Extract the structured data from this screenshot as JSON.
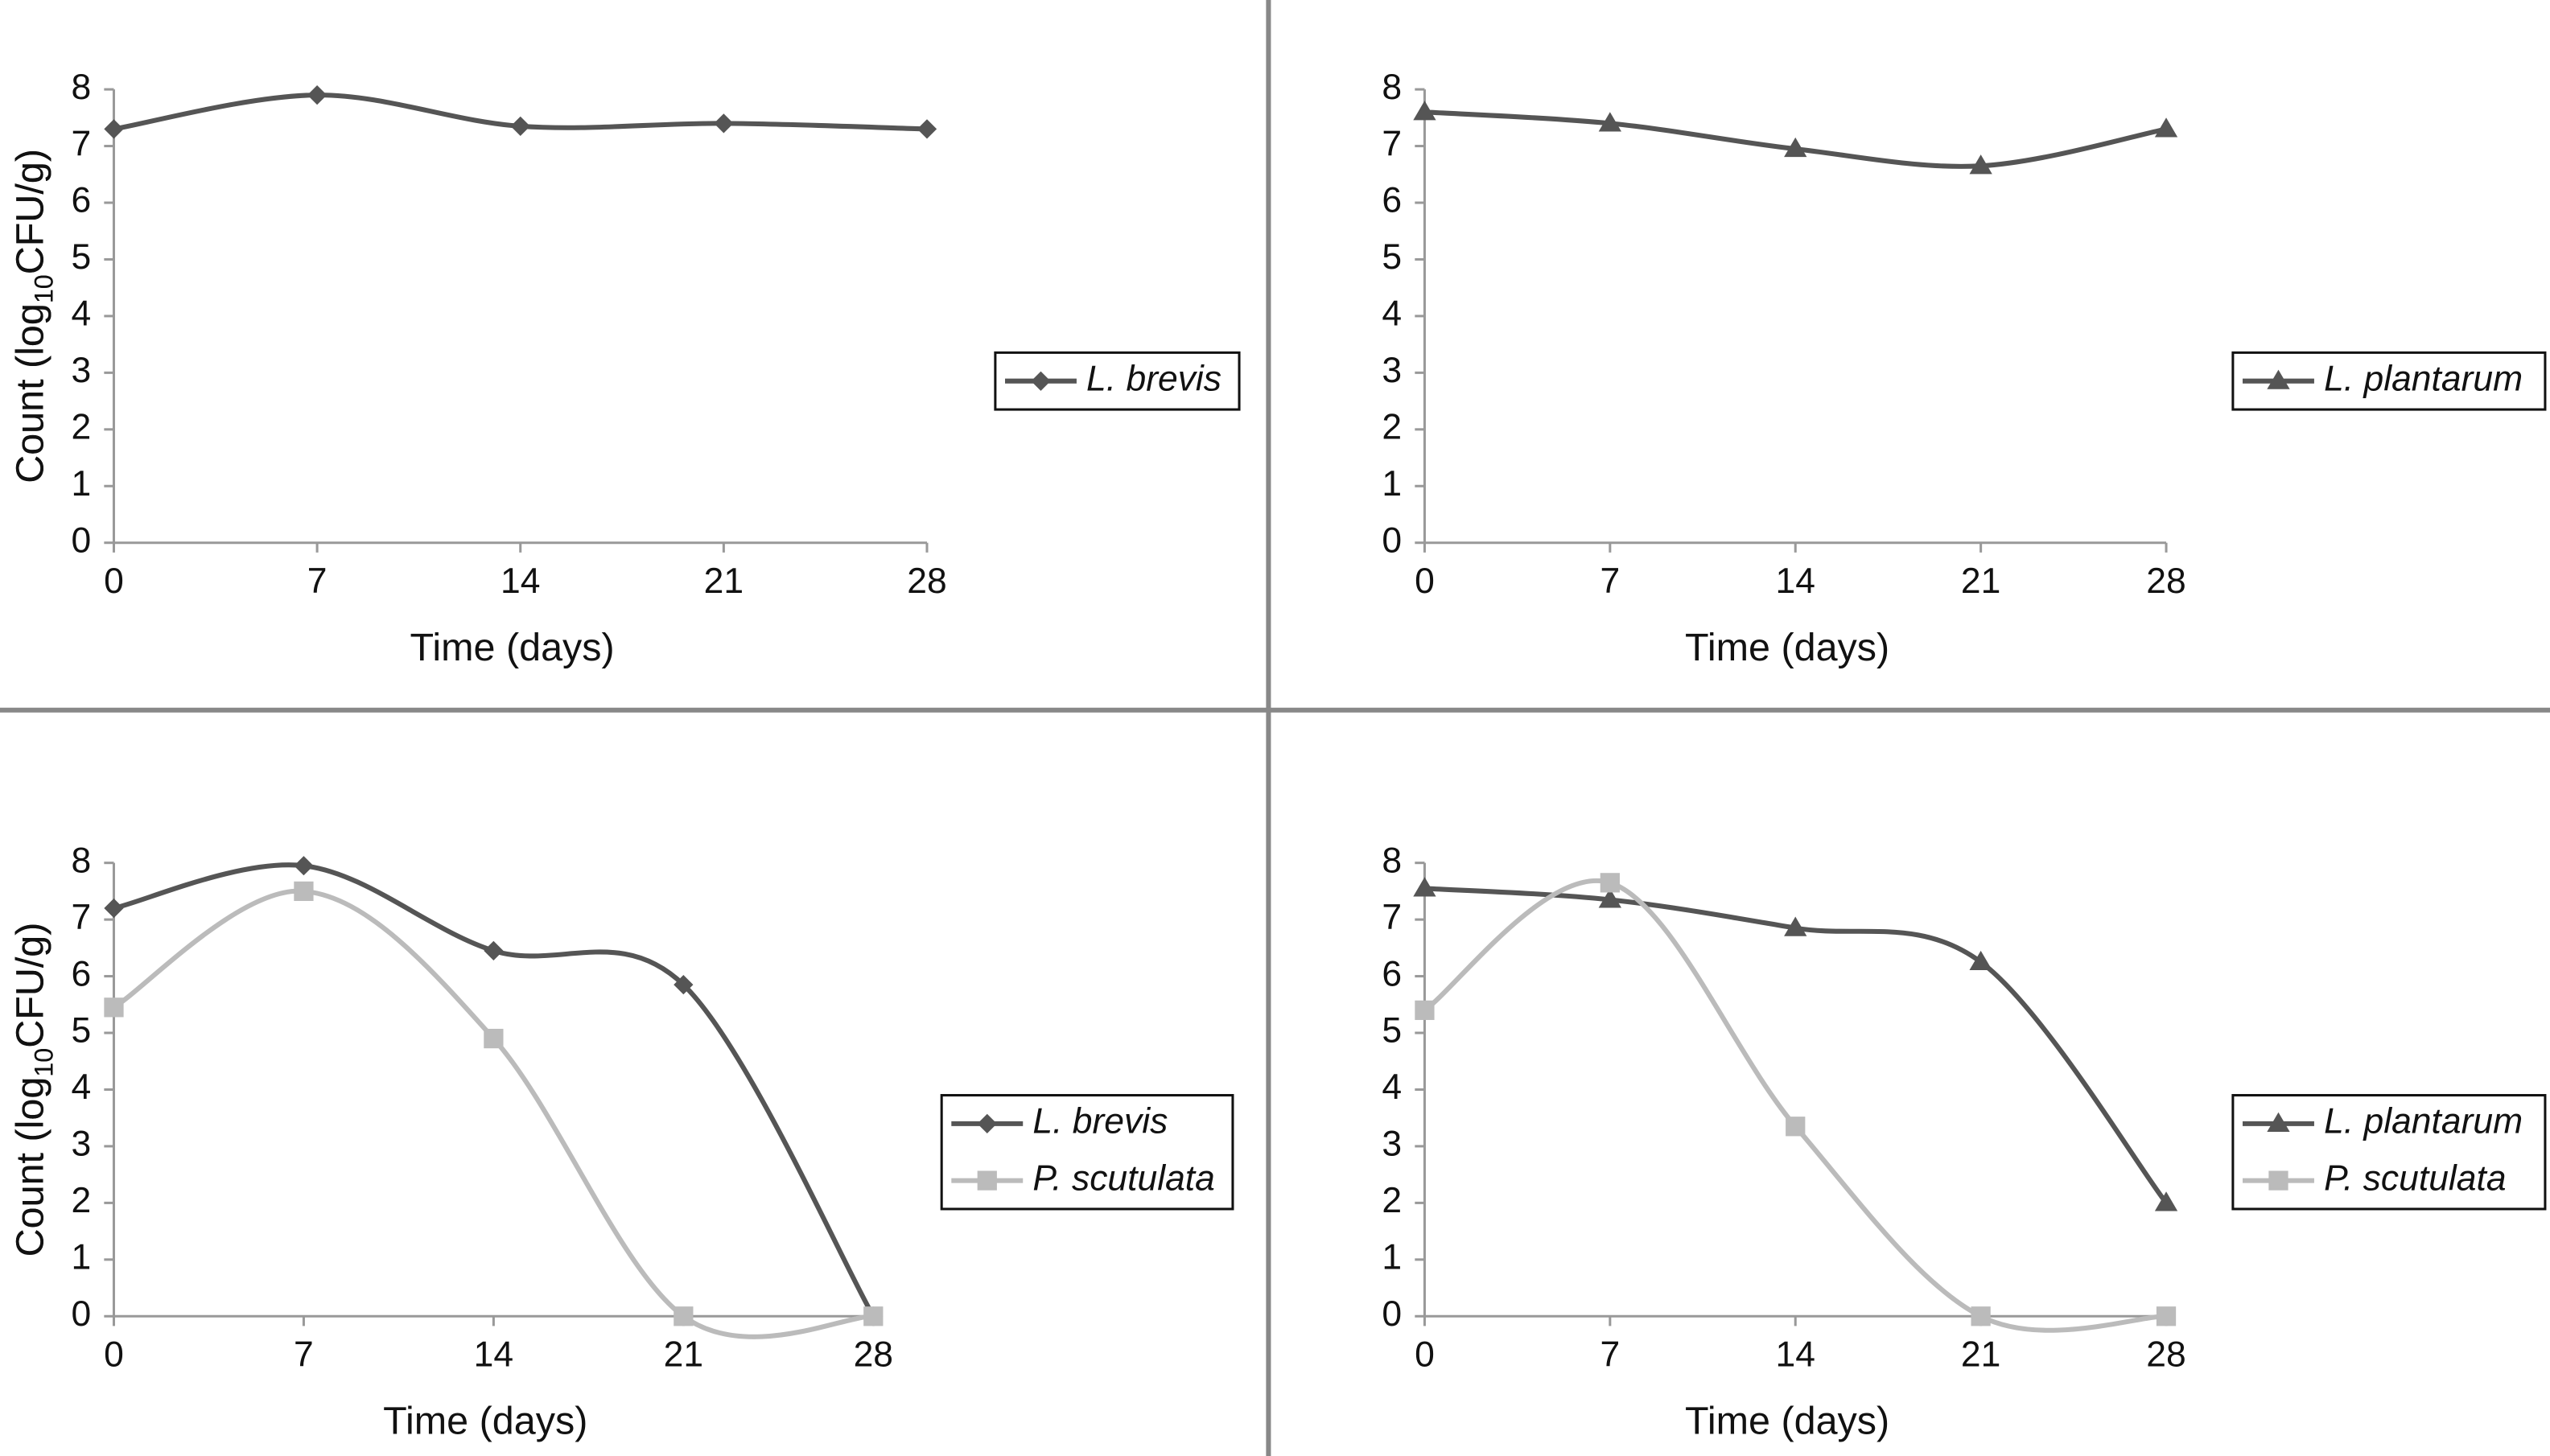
{
  "chart_data": [
    {
      "type": "line",
      "smooth": true,
      "legend": "right",
      "x_label": "Time (days)",
      "y_label_parts": [
        "Count (log",
        "10",
        "CFU/g)"
      ],
      "x": [
        0,
        7,
        14,
        21,
        28
      ],
      "xlim": [
        0,
        28
      ],
      "xticks": [
        0,
        7,
        14,
        21,
        28
      ],
      "ylim": [
        0,
        8
      ],
      "yticks": [
        0,
        1,
        2,
        3,
        4,
        5,
        6,
        7,
        8
      ],
      "series": [
        {
          "name": "L. brevis",
          "color": "#555555",
          "marker": "diamond",
          "values": [
            7.3,
            7.9,
            7.35,
            7.4,
            7.3
          ]
        }
      ]
    },
    {
      "type": "line",
      "smooth": true,
      "legend": "right",
      "x_label": "Time (days)",
      "y_label_parts": [
        "Count (log",
        "10",
        "CFU/g)"
      ],
      "x": [
        0,
        7,
        14,
        21,
        28
      ],
      "xlim": [
        0,
        28
      ],
      "xticks": [
        0,
        7,
        14,
        21,
        28
      ],
      "ylim": [
        0,
        8
      ],
      "yticks": [
        0,
        1,
        2,
        3,
        4,
        5,
        6,
        7,
        8
      ],
      "series": [
        {
          "name": "L. plantarum",
          "color": "#555555",
          "marker": "triangle",
          "values": [
            7.6,
            7.4,
            6.95,
            6.65,
            7.3
          ]
        }
      ]
    },
    {
      "type": "line",
      "smooth": true,
      "legend": "right",
      "x_label": "Time (days)",
      "y_label_parts": [
        "Count (log",
        "10",
        "CFU/g)"
      ],
      "x": [
        0,
        7,
        14,
        21,
        28
      ],
      "xlim": [
        0,
        28
      ],
      "xticks": [
        0,
        7,
        14,
        21,
        28
      ],
      "ylim": [
        0,
        8
      ],
      "yticks": [
        0,
        1,
        2,
        3,
        4,
        5,
        6,
        7,
        8
      ],
      "series": [
        {
          "name": "L. brevis",
          "color": "#555555",
          "marker": "diamond",
          "values": [
            7.2,
            7.95,
            6.45,
            5.85,
            0
          ]
        },
        {
          "name": "P. scutulata",
          "color": "#bbbbbb",
          "marker": "square",
          "values": [
            5.45,
            7.5,
            4.9,
            0,
            0
          ]
        }
      ]
    },
    {
      "type": "line",
      "smooth": true,
      "legend": "right",
      "x_label": "Time (days)",
      "y_label_parts": [
        "Count (log",
        "10",
        "CFU/g)"
      ],
      "x": [
        0,
        7,
        14,
        21,
        28
      ],
      "xlim": [
        0,
        28
      ],
      "xticks": [
        0,
        7,
        14,
        21,
        28
      ],
      "ylim": [
        0,
        8
      ],
      "yticks": [
        0,
        1,
        2,
        3,
        4,
        5,
        6,
        7,
        8
      ],
      "series": [
        {
          "name": "L. plantarum",
          "color": "#555555",
          "marker": "triangle",
          "values": [
            7.55,
            7.35,
            6.85,
            6.25,
            2.0
          ]
        },
        {
          "name": "P. scutulata",
          "color": "#bbbbbb",
          "marker": "square",
          "values": [
            5.4,
            7.65,
            3.35,
            0,
            0
          ]
        }
      ]
    }
  ]
}
